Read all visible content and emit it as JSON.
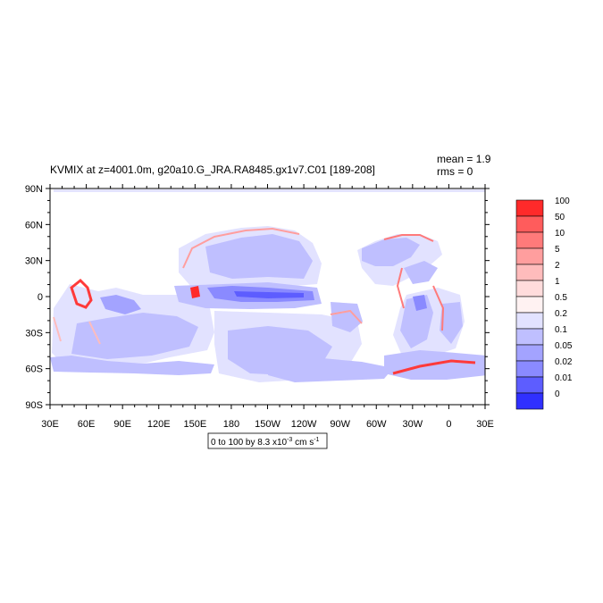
{
  "title": "KVMIX at z=4001.0m, g20a10.G_JRA.RA8485.gx1v7.C01 [189-208]",
  "stats": {
    "mean": "mean = 1.9",
    "rms": "rms = 0"
  },
  "x_tick_labels": [
    "30E",
    "60E",
    "90E",
    "120E",
    "150E",
    "180",
    "150W",
    "120W",
    "90W",
    "60W",
    "30W",
    "0",
    "30E"
  ],
  "y_tick_labels": [
    "90N",
    "60N",
    "30N",
    "0",
    "30S",
    "60S",
    "90S"
  ],
  "colorbar": {
    "levels": [
      "100",
      "50",
      "10",
      "5",
      "2",
      "1",
      "0.5",
      "0.2",
      "0.1",
      "0.05",
      "0.02",
      "0.01",
      "0"
    ],
    "colors": [
      "#ff2a2a",
      "#ff5c5c",
      "#ff7a7a",
      "#ff9e9e",
      "#ffbcbc",
      "#ffdcdc",
      "#fff2f2",
      "#e2e2ff",
      "#bfbfff",
      "#a3a3ff",
      "#8a8aff",
      "#5d5dff",
      "#3030ff"
    ]
  },
  "contour_info": {
    "text_main": "0 to 100 by 8.3 x10",
    "text_exp": "-3",
    "text_units": " cm s",
    "text_units_exp": "-1"
  },
  "chart_data": {
    "type": "heatmap",
    "title": "KVMIX at z=4001.0m, g20a10.G_JRA.RA8485.gx1v7.C01 [189-208]",
    "variable": "KVMIX",
    "depth": "z=4001.0m",
    "mean": 1.9,
    "rms": 0,
    "x_axis": {
      "range": [
        "30E",
        "30E"
      ],
      "ticks": [
        "30E",
        "60E",
        "90E",
        "120E",
        "150E",
        "180",
        "150W",
        "120W",
        "90W",
        "60W",
        "30W",
        "0",
        "30E"
      ]
    },
    "y_axis": {
      "range": [
        "90S",
        "90N"
      ],
      "ticks": [
        "90N",
        "60N",
        "30N",
        "0",
        "30S",
        "60S",
        "90S"
      ]
    },
    "color_levels": [
      0,
      0.01,
      0.02,
      0.05,
      0.1,
      0.2,
      0.5,
      1,
      2,
      5,
      10,
      50,
      100
    ],
    "contour_range": "0 to 100 by 8.3 x10^-3 cm s^-1"
  }
}
